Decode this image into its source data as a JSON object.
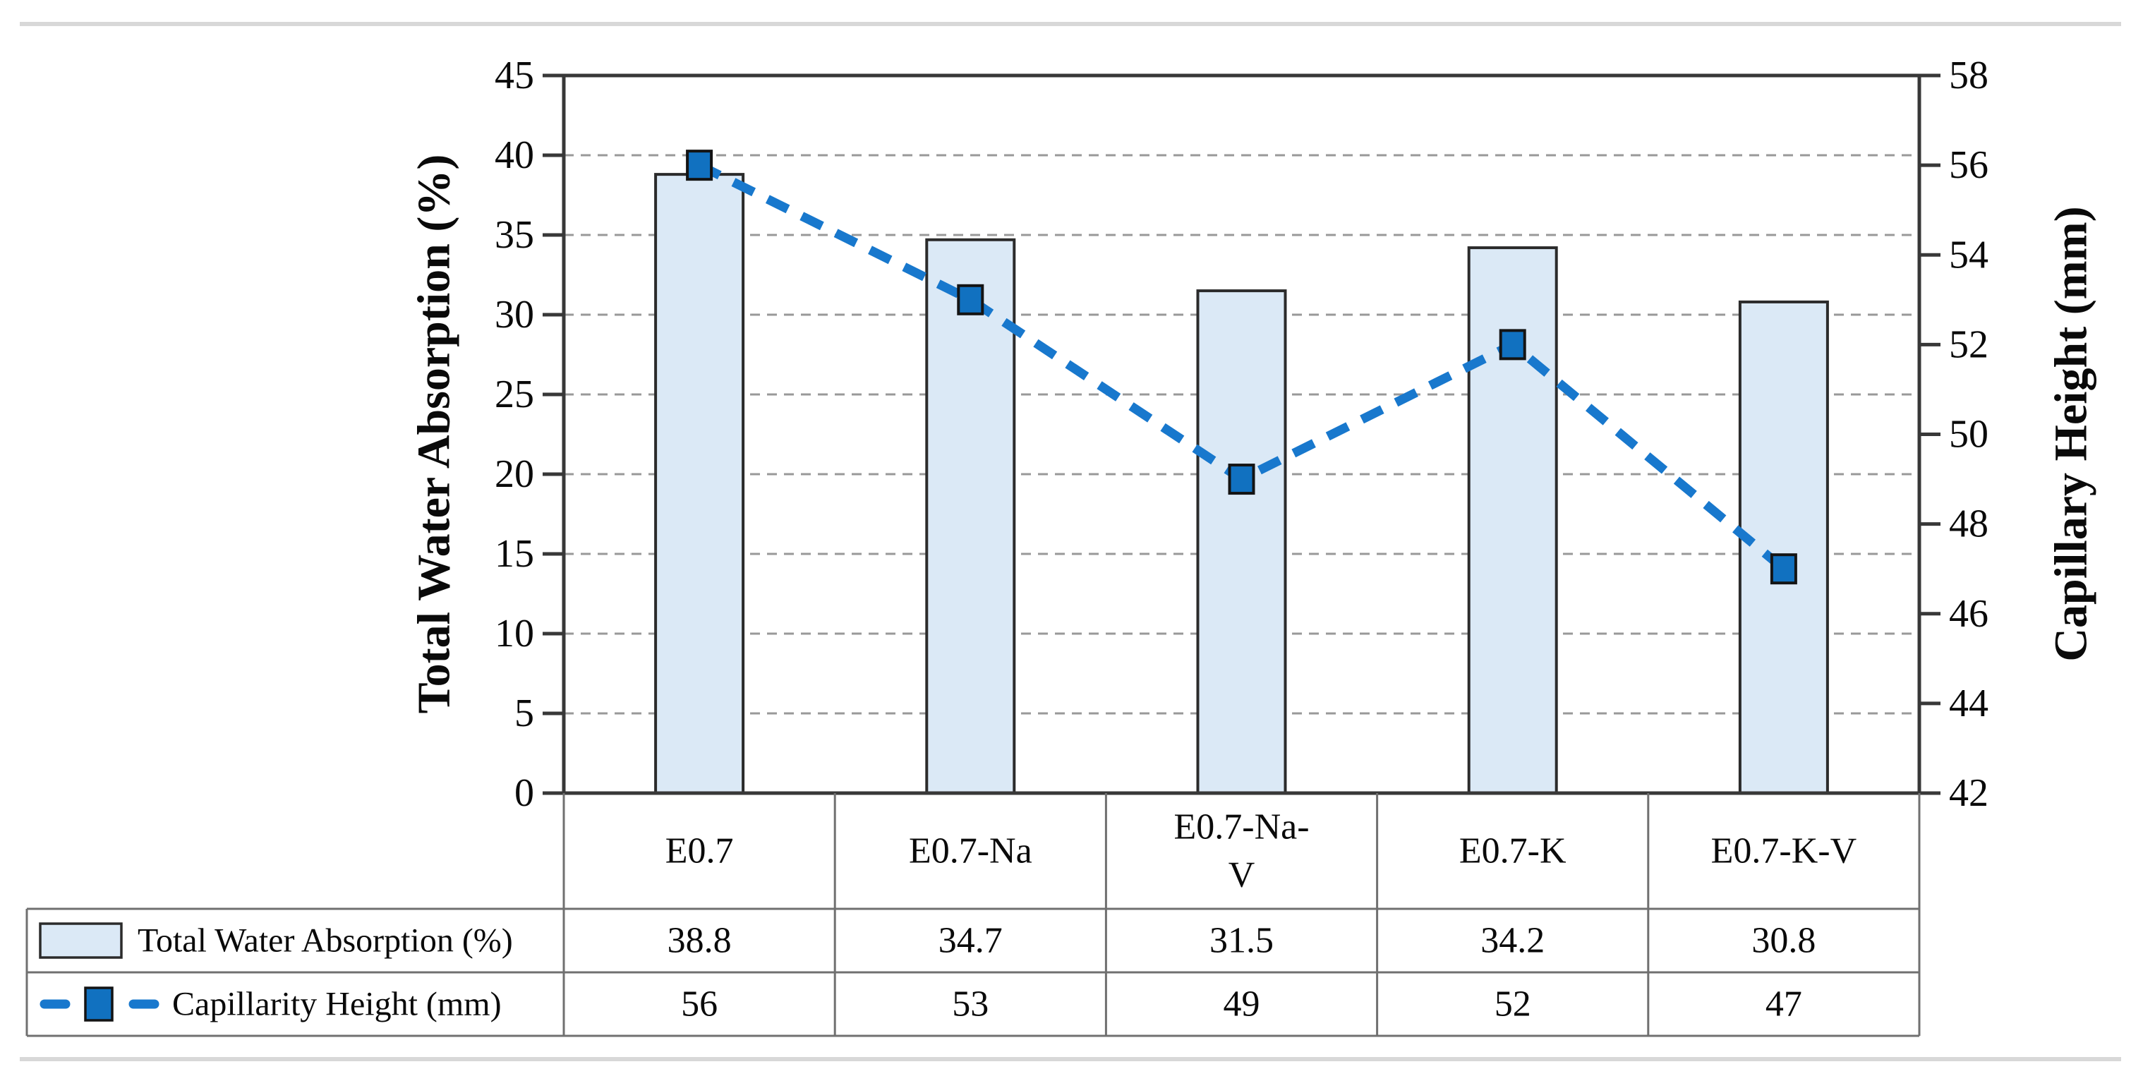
{
  "page": {
    "background": "#ffffff",
    "rule_color": "#d8d8d8"
  },
  "chart_data": {
    "type": "combo_bar_line",
    "title": "",
    "categories": [
      "E0.7",
      "E0.7-Na",
      "E0.7-Na-V",
      "E0.7-K",
      "E0.7-K-V"
    ],
    "series": [
      {
        "name": "Total Water Absorption (%)",
        "type": "bar",
        "axis": "left",
        "values": [
          38.8,
          34.7,
          31.5,
          34.2,
          30.8
        ],
        "fill_color": "#dbe9f6",
        "border_color": "#2b2b2b"
      },
      {
        "name": "Capillarity Height (mm)",
        "type": "line",
        "axis": "right",
        "style": "dashed",
        "marker": "square",
        "values": [
          56,
          53,
          49,
          52,
          47
        ],
        "line_color": "#1878cd",
        "marker_color": "#1171c0",
        "marker_border_color": "#141414"
      }
    ],
    "left_axis": {
      "title": "Total Water Absorption (%)",
      "min": 0,
      "max": 45,
      "step": 5,
      "ticks": [
        0,
        5,
        10,
        15,
        20,
        25,
        30,
        35,
        40,
        45
      ]
    },
    "right_axis": {
      "title": "Capillary Height (mm)",
      "min": 42,
      "max": 58,
      "step": 2,
      "ticks": [
        42,
        44,
        46,
        48,
        50,
        52,
        54,
        56,
        58
      ]
    },
    "grid": {
      "horizontal": true,
      "style": "dashed",
      "color": "#999999"
    },
    "legend_position": "data-table-left-column",
    "show_data_table": true,
    "axis_line_color": "#383838",
    "table_line_color": "#707070"
  }
}
